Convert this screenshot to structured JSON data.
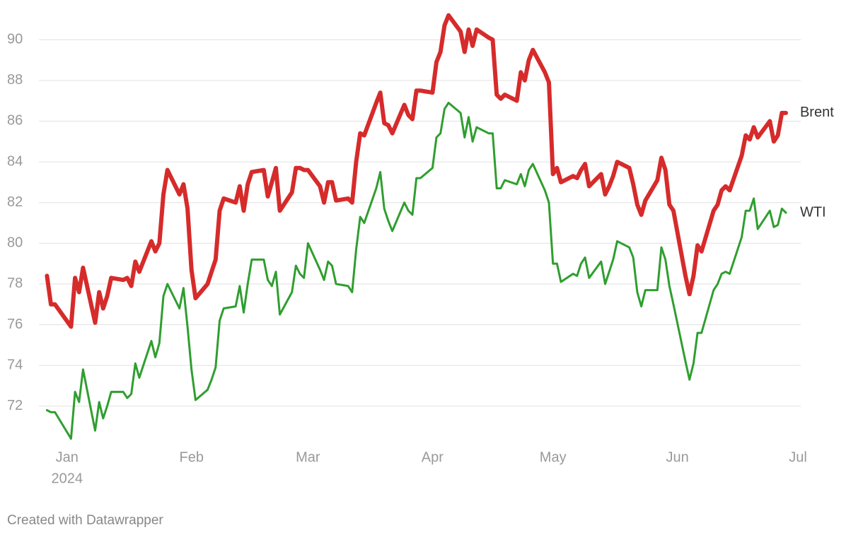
{
  "chart_data": {
    "type": "line",
    "footer": "Created with Datawrapper",
    "x": [
      "2023-12-27",
      "2023-12-28",
      "2023-12-29",
      "2024-01-02",
      "2024-01-03",
      "2024-01-04",
      "2024-01-05",
      "2024-01-08",
      "2024-01-09",
      "2024-01-10",
      "2024-01-11",
      "2024-01-12",
      "2024-01-15",
      "2024-01-16",
      "2024-01-17",
      "2024-01-18",
      "2024-01-19",
      "2024-01-22",
      "2024-01-23",
      "2024-01-24",
      "2024-01-25",
      "2024-01-26",
      "2024-01-29",
      "2024-01-30",
      "2024-01-31",
      "2024-02-01",
      "2024-02-02",
      "2024-02-05",
      "2024-02-06",
      "2024-02-07",
      "2024-02-08",
      "2024-02-09",
      "2024-02-12",
      "2024-02-13",
      "2024-02-14",
      "2024-02-15",
      "2024-02-16",
      "2024-02-19",
      "2024-02-20",
      "2024-02-21",
      "2024-02-22",
      "2024-02-23",
      "2024-02-26",
      "2024-02-27",
      "2024-02-28",
      "2024-02-29",
      "2024-03-01",
      "2024-03-04",
      "2024-03-05",
      "2024-03-06",
      "2024-03-07",
      "2024-03-08",
      "2024-03-11",
      "2024-03-12",
      "2024-03-13",
      "2024-03-14",
      "2024-03-15",
      "2024-03-18",
      "2024-03-19",
      "2024-03-20",
      "2024-03-21",
      "2024-03-22",
      "2024-03-25",
      "2024-03-26",
      "2024-03-27",
      "2024-03-28",
      "2024-03-29",
      "2024-04-01",
      "2024-04-02",
      "2024-04-03",
      "2024-04-04",
      "2024-04-05",
      "2024-04-08",
      "2024-04-09",
      "2024-04-10",
      "2024-04-11",
      "2024-04-12",
      "2024-04-15",
      "2024-04-16",
      "2024-04-17",
      "2024-04-18",
      "2024-04-19",
      "2024-04-22",
      "2024-04-23",
      "2024-04-24",
      "2024-04-25",
      "2024-04-26",
      "2024-04-29",
      "2024-04-30",
      "2024-05-01",
      "2024-05-02",
      "2024-05-03",
      "2024-05-06",
      "2024-05-07",
      "2024-05-08",
      "2024-05-09",
      "2024-05-10",
      "2024-05-13",
      "2024-05-14",
      "2024-05-15",
      "2024-05-16",
      "2024-05-17",
      "2024-05-20",
      "2024-05-21",
      "2024-05-22",
      "2024-05-23",
      "2024-05-24",
      "2024-05-27",
      "2024-05-28",
      "2024-05-29",
      "2024-05-30",
      "2024-05-31",
      "2024-06-03",
      "2024-06-04",
      "2024-06-05",
      "2024-06-06",
      "2024-06-07",
      "2024-06-10",
      "2024-06-11",
      "2024-06-12",
      "2024-06-13",
      "2024-06-14",
      "2024-06-17",
      "2024-06-18",
      "2024-06-19",
      "2024-06-20",
      "2024-06-21",
      "2024-06-24",
      "2024-06-25",
      "2024-06-26",
      "2024-06-27",
      "2024-06-28"
    ],
    "series": [
      {
        "name": "Brent",
        "color": "#d62b2b",
        "width": 6,
        "values": [
          78.4,
          77.0,
          77.0,
          75.9,
          78.3,
          77.6,
          78.8,
          76.1,
          77.6,
          76.8,
          77.4,
          78.3,
          78.2,
          78.3,
          77.9,
          79.1,
          78.6,
          80.1,
          79.6,
          80.0,
          82.4,
          83.6,
          82.4,
          82.9,
          81.7,
          78.7,
          77.3,
          78.0,
          78.6,
          79.2,
          81.6,
          82.2,
          82.0,
          82.8,
          81.6,
          82.9,
          83.5,
          83.6,
          82.3,
          83.0,
          83.7,
          81.6,
          82.5,
          83.7,
          83.7,
          83.6,
          83.6,
          82.8,
          82.0,
          83.0,
          83.0,
          82.1,
          82.2,
          82.0,
          84.0,
          85.4,
          85.3,
          86.9,
          87.4,
          85.9,
          85.8,
          85.4,
          86.8,
          86.3,
          86.1,
          87.5,
          87.5,
          87.4,
          88.9,
          89.4,
          90.7,
          91.2,
          90.4,
          89.4,
          90.5,
          89.7,
          90.5,
          90.1,
          90.0,
          87.3,
          87.1,
          87.3,
          87.0,
          88.4,
          88.0,
          89.0,
          89.5,
          88.4,
          87.9,
          83.4,
          83.7,
          83.0,
          83.3,
          83.2,
          83.6,
          83.9,
          82.8,
          83.4,
          82.4,
          82.8,
          83.3,
          84.0,
          83.7,
          82.9,
          81.9,
          81.4,
          82.1,
          83.1,
          84.2,
          83.6,
          81.9,
          81.6,
          78.4,
          77.5,
          78.4,
          79.9,
          79.6,
          81.6,
          81.9,
          82.6,
          82.8,
          82.6,
          84.3,
          85.3,
          85.1,
          85.7,
          85.2,
          86.0,
          85.0,
          85.3,
          86.4,
          86.4
        ]
      },
      {
        "name": "WTI",
        "color": "#2f9e2f",
        "width": 3,
        "values": [
          71.8,
          71.7,
          71.7,
          70.4,
          72.7,
          72.2,
          73.8,
          70.8,
          72.2,
          71.4,
          72.0,
          72.7,
          72.7,
          72.4,
          72.6,
          74.1,
          73.4,
          75.2,
          74.4,
          75.1,
          77.4,
          78.0,
          76.8,
          77.8,
          75.9,
          73.8,
          72.3,
          72.8,
          73.3,
          73.9,
          76.2,
          76.8,
          76.9,
          77.9,
          76.6,
          78.0,
          79.2,
          79.2,
          78.2,
          77.9,
          78.6,
          76.5,
          77.6,
          78.9,
          78.5,
          78.3,
          80.0,
          78.7,
          78.2,
          79.1,
          78.9,
          78.0,
          77.9,
          77.6,
          79.7,
          81.3,
          81.0,
          82.7,
          83.5,
          81.7,
          81.1,
          80.6,
          82.0,
          81.6,
          81.4,
          83.2,
          83.2,
          83.7,
          85.2,
          85.4,
          86.6,
          86.9,
          86.4,
          85.2,
          86.2,
          85.0,
          85.7,
          85.4,
          85.4,
          82.7,
          82.7,
          83.1,
          82.9,
          83.4,
          82.8,
          83.6,
          83.9,
          82.6,
          82.0,
          79.0,
          79.0,
          78.1,
          78.5,
          78.4,
          79.0,
          79.3,
          78.3,
          79.1,
          78.0,
          78.6,
          79.2,
          80.1,
          79.8,
          79.3,
          77.6,
          76.9,
          77.7,
          77.7,
          79.8,
          79.2,
          77.9,
          77.0,
          74.2,
          73.3,
          74.1,
          75.6,
          75.6,
          77.7,
          78.0,
          78.5,
          78.6,
          78.5,
          80.3,
          81.6,
          81.6,
          82.2,
          80.7,
          81.6,
          80.8,
          80.9,
          81.7,
          81.5
        ]
      }
    ],
    "xlim": [
      "2023-12-25",
      "2024-07-01"
    ],
    "xticks": [
      {
        "value": "2024-01-01",
        "label": "Jan"
      },
      {
        "value": "2024-02-01",
        "label": "Feb"
      },
      {
        "value": "2024-03-01",
        "label": "Mar"
      },
      {
        "value": "2024-04-01",
        "label": "Apr"
      },
      {
        "value": "2024-05-01",
        "label": "May"
      },
      {
        "value": "2024-06-01",
        "label": "Jun"
      },
      {
        "value": "2024-07-01",
        "label": "Jul"
      }
    ],
    "xtick_year": "2024",
    "ylim": [
      70.5,
      91.5
    ],
    "yticks": [
      72,
      74,
      76,
      78,
      80,
      82,
      84,
      86,
      88,
      90
    ],
    "grid": true
  }
}
